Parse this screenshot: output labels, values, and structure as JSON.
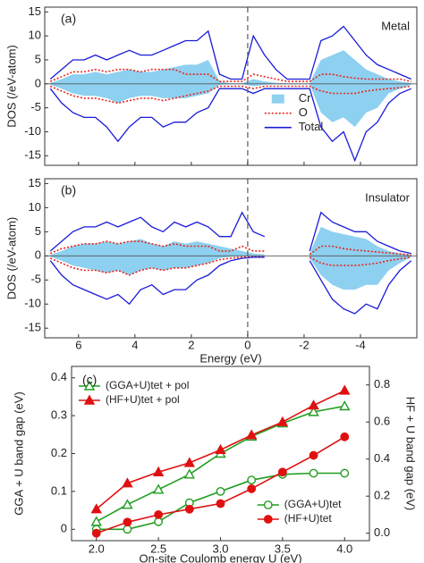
{
  "chart_data": [
    {
      "type": "dos",
      "label": "(a)",
      "annotation": "Metal",
      "ylabel": "DOS (/eV-atom)",
      "fermi_level": 0,
      "legend": "right",
      "xlim": [
        7.2,
        -6.0
      ],
      "xticks": [
        6,
        4,
        2,
        0,
        -2,
        -4
      ],
      "show_xtick_labels": false,
      "ylim": [
        -17,
        16
      ],
      "yticks": [
        -15,
        -10,
        -5,
        0,
        5,
        10,
        15
      ],
      "x": [
        7.0,
        6.6,
        6.2,
        5.8,
        5.4,
        5.0,
        4.6,
        4.2,
        3.8,
        3.4,
        3.0,
        2.6,
        2.2,
        1.8,
        1.4,
        1.0,
        0.6,
        0.2,
        -0.2,
        -0.6,
        -1.0,
        -1.4,
        -1.8,
        -2.2,
        -2.6,
        -3.0,
        -3.4,
        -3.8,
        -4.2,
        -4.6,
        -5.0,
        -5.4,
        -5.8
      ],
      "series": [
        {
          "name": "Cr",
          "style": "area",
          "color": "#8ed0f0",
          "up": [
            0.2,
            1,
            2,
            2,
            2.5,
            2,
            2.5,
            3,
            2.5,
            2.5,
            3,
            3.5,
            4,
            4,
            5,
            0.5,
            0.1,
            0.1,
            1,
            0.5,
            0.2,
            0.1,
            0.1,
            0.1,
            5,
            6,
            7,
            5,
            3,
            2,
            1,
            0.5,
            0.2
          ],
          "down": [
            -0.2,
            -1,
            -2,
            -2.5,
            -2.5,
            -3,
            -4,
            -3,
            -2.5,
            -2.5,
            -3,
            -3,
            -3,
            -2.5,
            -2,
            -0.2,
            -0.1,
            -0.1,
            -0.5,
            -0.2,
            -0.1,
            -0.1,
            -0.1,
            -0.1,
            -6,
            -8,
            -7,
            -9,
            -6,
            -5,
            -2,
            -1,
            -0.2
          ]
        },
        {
          "name": "O",
          "style": "dotted",
          "color": "#e8241c",
          "up": [
            0.5,
            1.5,
            2.5,
            2.5,
            3,
            2.5,
            3,
            3,
            2.5,
            3,
            3,
            3,
            2,
            2,
            2,
            0.5,
            0.5,
            0.5,
            2,
            1.5,
            1,
            0.5,
            0.5,
            0.5,
            2,
            2,
            1.5,
            1.2,
            1,
            1,
            1,
            1,
            0.5
          ],
          "down": [
            -0.5,
            -1.5,
            -2.5,
            -3,
            -3,
            -3.5,
            -4,
            -3.5,
            -3,
            -3,
            -3.5,
            -3,
            -2.5,
            -2,
            -1.5,
            -0.5,
            -0.5,
            -0.5,
            -1,
            -0.5,
            -0.5,
            -0.5,
            -0.5,
            -0.5,
            -1.5,
            -2,
            -2,
            -2,
            -1.5,
            -1.2,
            -1,
            -0.8,
            -0.5
          ]
        },
        {
          "name": "Total",
          "style": "line",
          "color": "#1a1ad8",
          "up": [
            1,
            3,
            5,
            5,
            6,
            5,
            6,
            7,
            6,
            6,
            7,
            8,
            9,
            9,
            11,
            2,
            1,
            1,
            10,
            6,
            3,
            1,
            1,
            1,
            9,
            10,
            12,
            9,
            6,
            4,
            3,
            2,
            1
          ],
          "down": [
            -1,
            -4,
            -6,
            -7,
            -7,
            -9,
            -12,
            -9,
            -7,
            -7,
            -9,
            -8,
            -8,
            -6,
            -5,
            -1,
            -1,
            -1,
            -2,
            -1,
            -1,
            -1,
            -1,
            -1,
            -9,
            -12,
            -10,
            -16,
            -10,
            -8,
            -4,
            -2,
            -1
          ]
        }
      ]
    },
    {
      "type": "dos",
      "label": "(b)",
      "annotation": "Insulator",
      "ylabel": "DOS (/eV-atom)",
      "xlabel": "Energy  (eV)",
      "fermi_level": 0,
      "xlim": [
        7.2,
        -6.0
      ],
      "xticks": [
        6,
        4,
        2,
        0,
        -2,
        -4
      ],
      "show_xtick_labels": true,
      "ylim": [
        -17,
        16
      ],
      "yticks": [
        -15,
        -10,
        -5,
        0,
        5,
        10,
        15
      ],
      "x": [
        7.0,
        6.6,
        6.2,
        5.8,
        5.4,
        5.0,
        4.6,
        4.2,
        3.8,
        3.4,
        3.0,
        2.6,
        2.2,
        1.8,
        1.4,
        1.0,
        0.6,
        0.2,
        -0.2,
        -0.6,
        -1.0,
        -1.4,
        -1.8,
        -2.2,
        -2.6,
        -3.0,
        -3.4,
        -3.8,
        -4.2,
        -4.6,
        -5.0,
        -5.4,
        -5.8
      ],
      "series": [
        {
          "style": "area",
          "color": "#8ed0f0",
          "up": [
            0.2,
            1,
            2,
            2.5,
            2.5,
            3,
            2.5,
            3,
            3.5,
            2.5,
            2,
            3,
            2.5,
            3,
            2.5,
            2,
            1.5,
            1,
            0.5,
            0.3,
            null,
            null,
            null,
            0.5,
            6,
            5,
            4.5,
            4,
            3.5,
            2,
            1,
            0.5,
            0.2
          ],
          "down": [
            -0.2,
            -1,
            -2,
            -2.5,
            -3,
            -3.5,
            -3,
            -4,
            -3,
            -2.5,
            -3,
            -2.5,
            -2.5,
            -2,
            -1.5,
            -0.5,
            -0.2,
            -0.1,
            -0.1,
            -0.1,
            null,
            null,
            null,
            -0.5,
            -4,
            -6,
            -7,
            -7,
            -6,
            -6,
            -3,
            -1.5,
            -0.3
          ]
        },
        {
          "style": "dotted",
          "color": "#e8241c",
          "up": [
            0.5,
            1.5,
            2,
            2.5,
            2.5,
            3,
            2.5,
            3,
            3,
            2.5,
            2,
            2.5,
            2,
            2,
            2,
            1,
            1,
            2,
            1,
            1,
            null,
            null,
            null,
            0.3,
            2,
            2,
            1.5,
            1.2,
            1,
            0.8,
            0.6,
            0.4,
            0.2
          ],
          "down": [
            -0.5,
            -1.5,
            -2.5,
            -3,
            -3,
            -3.5,
            -3,
            -4,
            -3,
            -2.5,
            -3,
            -2.5,
            -2.5,
            -2,
            -1.5,
            -0.8,
            -0.5,
            -0.3,
            -0.2,
            -0.2,
            null,
            null,
            null,
            -0.3,
            -1.5,
            -2,
            -2,
            -2,
            -1.8,
            -1.5,
            -1,
            -0.6,
            -0.3
          ]
        },
        {
          "style": "line",
          "color": "#1a1ad8",
          "up": [
            1,
            3,
            5,
            6,
            6,
            7,
            6,
            7,
            8,
            6,
            5,
            7,
            6,
            7,
            6,
            4,
            4,
            9,
            5,
            4,
            null,
            null,
            null,
            1,
            9,
            7,
            6,
            5,
            5,
            3,
            2,
            1,
            0.5
          ],
          "down": [
            -1,
            -4,
            -6,
            -7,
            -8,
            -9,
            -8,
            -10,
            -7,
            -6,
            -8,
            -7,
            -7,
            -5,
            -4,
            -2,
            -1,
            -0.5,
            -0.3,
            -0.3,
            null,
            null,
            null,
            -1,
            -5,
            -9,
            -11,
            -12,
            -10,
            -11,
            -6,
            -3,
            -1
          ]
        }
      ]
    },
    {
      "type": "line",
      "label": "(c)",
      "xlabel": "On-site Coulomb energy U (eV)",
      "ylabel": "GGA + U band gap (eV)",
      "y2label": "HF + U band gap (eV)",
      "x": [
        2.0,
        2.25,
        2.5,
        2.75,
        3.0,
        3.25,
        3.5,
        3.75,
        4.0
      ],
      "xlim": [
        1.8,
        4.2
      ],
      "xticks": [
        {
          "value": 2.0,
          "label": "2.0"
        },
        2.5,
        {
          "value": 3.0,
          "label": "3.0"
        },
        3.5,
        {
          "value": 4.0,
          "label": "4.0"
        }
      ],
      "ylim": [
        -0.03,
        0.43
      ],
      "yticks": [
        0,
        0.1,
        0.2,
        0.3,
        0.4
      ],
      "y2lim": [
        -0.04,
        0.9
      ],
      "y2ticks": [
        {
          "value": 0,
          "label": "0.0"
        },
        0.2,
        0.4,
        0.6,
        0.8
      ],
      "series": [
        {
          "name": "(GGA+U)tet + pol",
          "color": "#1f9e1f",
          "marker": "triangle",
          "filled": false,
          "axis": "y",
          "legend": "upper-left",
          "values": [
            0.02,
            0.065,
            0.105,
            0.145,
            0.2,
            0.245,
            0.28,
            0.31,
            0.325
          ]
        },
        {
          "name": "(HF+U)tet + pol",
          "color": "#e01010",
          "marker": "triangle",
          "filled": true,
          "axis": "y2",
          "legend": "upper-left",
          "values": [
            0.13,
            0.27,
            0.33,
            0.38,
            0.45,
            0.53,
            0.6,
            0.69,
            0.77
          ]
        },
        {
          "name": "(GGA+U)tet",
          "color": "#1f9e1f",
          "marker": "circle",
          "filled": false,
          "axis": "y",
          "legend": "lower-right",
          "values": [
            0,
            0,
            0.02,
            0.07,
            0.1,
            0.13,
            0.145,
            0.148,
            0.148
          ]
        },
        {
          "name": "(HF+U)tet",
          "color": "#e01010",
          "marker": "circle",
          "filled": true,
          "axis": "y2",
          "legend": "lower-right",
          "values": [
            0,
            0.06,
            0.1,
            0.13,
            0.16,
            0.24,
            0.33,
            0.42,
            0.52
          ]
        }
      ]
    }
  ]
}
